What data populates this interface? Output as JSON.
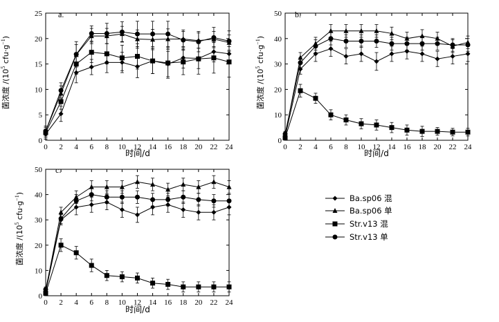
{
  "chart_data": [
    {
      "type": "line",
      "panel_label": "a.",
      "xlabel": "时间/d",
      "ylabel_main": "菌浓度 /(10",
      "ylabel_sup_exp": "5",
      "ylabel_unit": " cfu·g",
      "ylabel_sup_neg": "−1",
      "ylabel_close": ")",
      "xlim": [
        0,
        24
      ],
      "ylim": [
        0,
        25
      ],
      "xticks": [
        0,
        2,
        4,
        6,
        8,
        10,
        12,
        14,
        16,
        18,
        20,
        22,
        24
      ],
      "yticks": [
        0,
        5,
        10,
        15,
        20,
        25
      ],
      "x": [
        0,
        2,
        4,
        6,
        8,
        10,
        12,
        14,
        16,
        18,
        20,
        22,
        24
      ],
      "series": [
        {
          "name": "Ba.sp06 混",
          "marker": "diamond",
          "values": [
            1.2,
            5.2,
            13.3,
            14.4,
            15.3,
            15.3,
            14.5,
            15.6,
            15.0,
            16.2,
            16.1,
            17.4,
            17.0
          ],
          "errors": [
            1.0,
            1.5,
            2.0,
            1.5,
            2.0,
            2.0,
            2.2,
            2.5,
            2.5,
            2.0,
            2.0,
            2.0,
            2.0
          ]
        },
        {
          "name": "Ba.sp06 单",
          "marker": "triangle",
          "values": [
            1.8,
            9.2,
            16.8,
            20.5,
            20.5,
            20.9,
            19.9,
            19.8,
            19.9,
            19.9,
            19.6,
            19.9,
            19.2
          ],
          "errors": [
            1.0,
            1.5,
            2.0,
            1.5,
            1.5,
            1.5,
            1.8,
            2.0,
            2.0,
            1.5,
            1.5,
            1.5,
            1.5
          ]
        },
        {
          "name": "Str.v13 混",
          "marker": "square",
          "values": [
            1.5,
            7.6,
            15.0,
            17.3,
            17.0,
            16.2,
            16.5,
            15.6,
            15.2,
            15.4,
            16.0,
            16.2,
            15.4
          ],
          "errors": [
            1.0,
            1.5,
            2.0,
            2.0,
            2.0,
            2.5,
            2.5,
            2.5,
            3.0,
            2.5,
            3.0,
            3.0,
            3.0
          ]
        },
        {
          "name": "Str.v13 单",
          "marker": "circle",
          "values": [
            1.8,
            9.8,
            16.9,
            21.0,
            21.0,
            21.3,
            20.9,
            20.9,
            20.9,
            19.7,
            19.4,
            20.2,
            19.5
          ],
          "errors": [
            1.0,
            1.5,
            2.5,
            1.5,
            2.0,
            2.0,
            2.5,
            2.5,
            2.5,
            2.0,
            2.0,
            2.0,
            2.0
          ]
        }
      ]
    },
    {
      "type": "line",
      "panel_label": "b.",
      "xlabel": "时间/d",
      "ylabel_main": "菌浓度 /(10",
      "ylabel_sup_exp": "5",
      "ylabel_unit": " cfu·g",
      "ylabel_sup_neg": "−1",
      "ylabel_close": ")",
      "xlim": [
        0,
        24
      ],
      "ylim": [
        0,
        50
      ],
      "xticks": [
        0,
        2,
        4,
        6,
        8,
        10,
        12,
        14,
        16,
        18,
        20,
        22,
        24
      ],
      "yticks": [
        0,
        10,
        20,
        30,
        40,
        50
      ],
      "x": [
        0,
        2,
        4,
        6,
        8,
        10,
        12,
        14,
        16,
        18,
        20,
        22,
        24
      ],
      "series": [
        {
          "name": "Ba.sp06 混",
          "marker": "diamond",
          "values": [
            1.5,
            28.0,
            34.0,
            36.0,
            33.0,
            34.0,
            31.0,
            34.0,
            35.0,
            34.0,
            32.0,
            33.0,
            34.0
          ],
          "errors": [
            1.0,
            2.0,
            3.0,
            3.0,
            3.0,
            3.0,
            3.5,
            3.0,
            3.0,
            3.0,
            3.0,
            3.0,
            3.0
          ]
        },
        {
          "name": "Ba.sp06 单",
          "marker": "triangle",
          "values": [
            2.0,
            32.5,
            38.0,
            43.0,
            43.0,
            43.0,
            43.0,
            42.0,
            40.0,
            41.0,
            40.0,
            37.0,
            38.5
          ],
          "errors": [
            1.0,
            2.0,
            2.5,
            2.5,
            2.5,
            2.5,
            2.5,
            2.5,
            2.5,
            2.5,
            2.5,
            2.5,
            2.5
          ]
        },
        {
          "name": "Str.v13 混",
          "marker": "square",
          "values": [
            1.0,
            19.5,
            16.5,
            10.0,
            8.0,
            6.5,
            6.0,
            5.0,
            4.0,
            3.5,
            3.5,
            3.2,
            3.2
          ],
          "errors": [
            1.0,
            2.5,
            2.0,
            2.0,
            2.0,
            2.0,
            2.0,
            2.0,
            2.0,
            2.0,
            1.5,
            1.5,
            1.5
          ]
        },
        {
          "name": "Str.v13 单",
          "marker": "circle",
          "values": [
            2.5,
            30.5,
            37.0,
            40.0,
            39.0,
            39.0,
            39.0,
            38.0,
            38.0,
            38.0,
            38.0,
            37.5,
            37.5
          ],
          "errors": [
            1.0,
            2.0,
            2.5,
            2.5,
            2.5,
            2.5,
            2.5,
            2.5,
            2.5,
            2.5,
            2.5,
            2.5,
            2.5
          ]
        }
      ]
    },
    {
      "type": "line",
      "panel_label": "c.",
      "xlabel": "时间/d",
      "ylabel_main": "菌浓度 /(10",
      "ylabel_sup_exp": "5",
      "ylabel_unit": " cfu·g",
      "ylabel_sup_neg": "−1",
      "ylabel_close": ")",
      "xlim": [
        0,
        24
      ],
      "ylim": [
        0,
        50
      ],
      "xticks": [
        0,
        2,
        4,
        6,
        8,
        10,
        12,
        14,
        16,
        18,
        20,
        22,
        24
      ],
      "yticks": [
        0,
        10,
        20,
        30,
        40,
        50
      ],
      "x": [
        0,
        2,
        4,
        6,
        8,
        10,
        12,
        14,
        16,
        18,
        20,
        22,
        24
      ],
      "series": [
        {
          "name": "Ba.sp06 混",
          "marker": "diamond",
          "values": [
            1.5,
            30.0,
            35.0,
            36.0,
            37.0,
            34.0,
            32.0,
            35.0,
            36.0,
            34.0,
            33.0,
            33.0,
            35.0
          ],
          "errors": [
            1.0,
            2.0,
            3.0,
            3.0,
            3.0,
            3.0,
            3.0,
            3.0,
            3.0,
            3.0,
            3.0,
            3.0,
            3.0
          ]
        },
        {
          "name": "Ba.sp06 单",
          "marker": "triangle",
          "values": [
            2.0,
            33.0,
            39.0,
            43.0,
            43.0,
            43.0,
            45.0,
            44.0,
            42.0,
            44.0,
            43.0,
            45.0,
            43.0
          ],
          "errors": [
            1.0,
            2.0,
            2.5,
            2.5,
            2.5,
            2.5,
            2.5,
            2.5,
            2.5,
            2.5,
            2.5,
            2.5,
            2.5
          ]
        },
        {
          "name": "Str.v13 混",
          "marker": "square",
          "values": [
            1.0,
            20.0,
            17.0,
            12.0,
            8.0,
            7.5,
            7.0,
            5.0,
            4.5,
            3.5,
            3.5,
            3.5,
            3.5
          ],
          "errors": [
            1.0,
            2.5,
            2.5,
            2.5,
            2.0,
            2.0,
            2.0,
            2.0,
            2.0,
            2.0,
            2.0,
            2.0,
            2.0
          ]
        },
        {
          "name": "Str.v13 单",
          "marker": "circle",
          "values": [
            2.5,
            30.5,
            37.5,
            40.0,
            39.0,
            39.0,
            39.0,
            38.0,
            38.0,
            39.0,
            38.0,
            37.5,
            37.5
          ],
          "errors": [
            1.0,
            2.0,
            2.5,
            2.5,
            2.5,
            2.5,
            2.5,
            2.5,
            2.5,
            2.5,
            2.5,
            2.5,
            2.5
          ]
        }
      ]
    }
  ],
  "legend": {
    "items": [
      {
        "label": "Ba.sp06 混",
        "marker": "diamond"
      },
      {
        "label": "Ba.sp06 单",
        "marker": "triangle"
      },
      {
        "label": "Str.v13 混",
        "marker": "square"
      },
      {
        "label": "Str.v13 单",
        "marker": "circle"
      }
    ]
  },
  "colors": {
    "ink": "#000000",
    "background": "#ffffff"
  }
}
